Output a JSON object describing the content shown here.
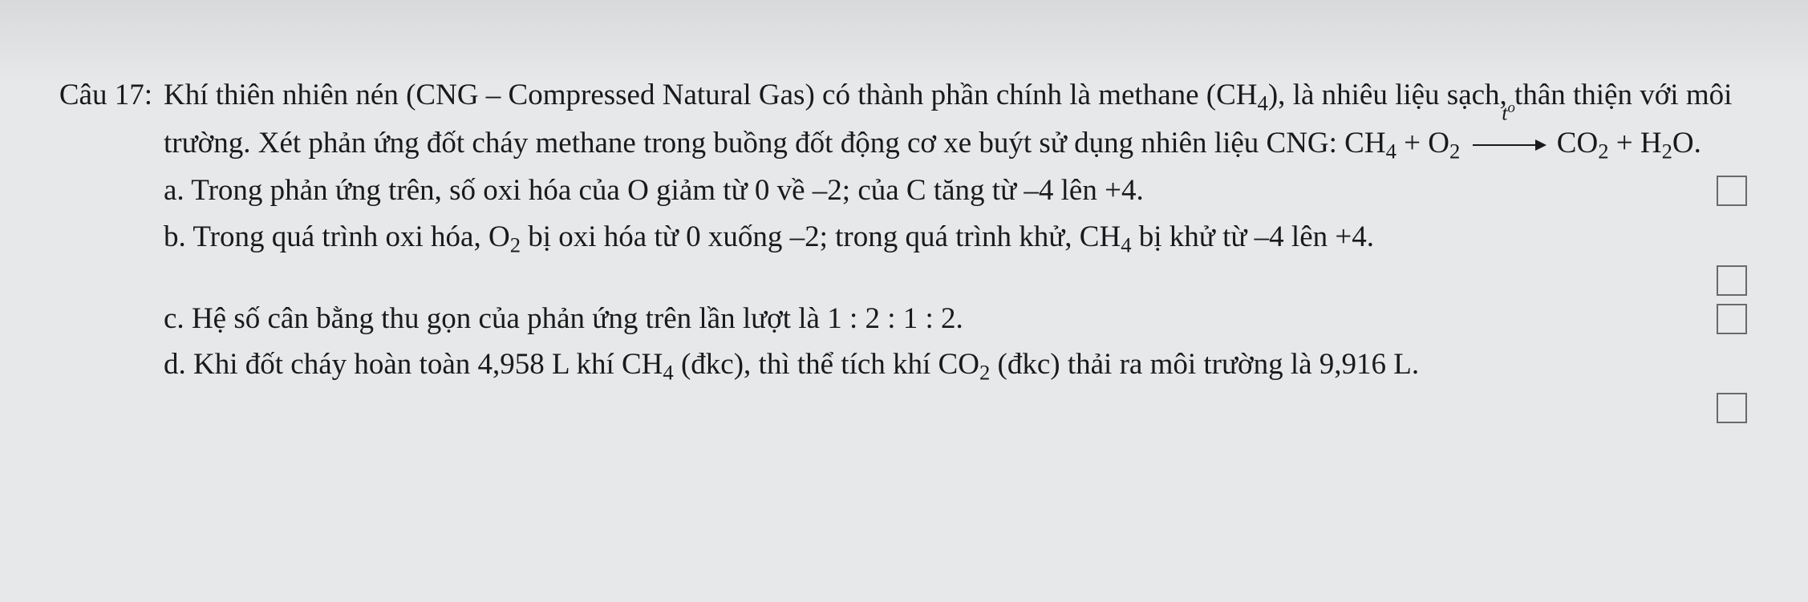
{
  "question_label": "Câu 17:",
  "intro": {
    "part1": "Khí thiên nhiên nén (CNG – Compressed Natural Gas) có thành phần chính là methane (CH",
    "ch4_sub": "4",
    "part2": "), là nhiêu liệu sạch, thân thiện với môi trường. Xét phản ứng đốt cháy methane trong buồng đốt động cơ xe buýt sử dụng nhiên liệu CNG: CH",
    "eq_ch4_sub": "4",
    "eq_plus1": " + O",
    "eq_o2_sub": "2",
    "arrow_label_t": "t",
    "arrow_label_o": "o",
    "eq_co2_a": " CO",
    "eq_co2_sub": "2",
    "eq_plus2": " + H",
    "eq_h2o_sub": "2",
    "eq_h2o_o": "O."
  },
  "a": {
    "label": "a.",
    "text": " Trong phản ứng trên, số oxi hóa của O giảm từ 0 về –2; của C tăng từ –4 lên +4."
  },
  "b": {
    "label": "b.",
    "t1": " Trong quá trình oxi hóa, O",
    "o2_sub": "2",
    "t2": " bị oxi hóa từ 0 xuống –2; trong quá trình khử, CH",
    "ch4_sub": "4",
    "t3": " bị khử từ  –4 lên +4."
  },
  "c": {
    "label": "c.",
    "text": " Hệ số cân bằng thu gọn của phản ứng trên lần lượt là 1 : 2 : 1 : 2."
  },
  "d": {
    "label": "d.",
    "t1": " Khi đốt cháy hoàn toàn 4,958 L khí CH",
    "ch4_sub": "4",
    "t2": " (đkc), thì thể tích khí CO",
    "co2_sub": "2",
    "t3": " (đkc) thải ra môi trường là 9,916 L."
  },
  "checkbox_state": {
    "a": false,
    "b": false,
    "c": false,
    "d": false
  }
}
